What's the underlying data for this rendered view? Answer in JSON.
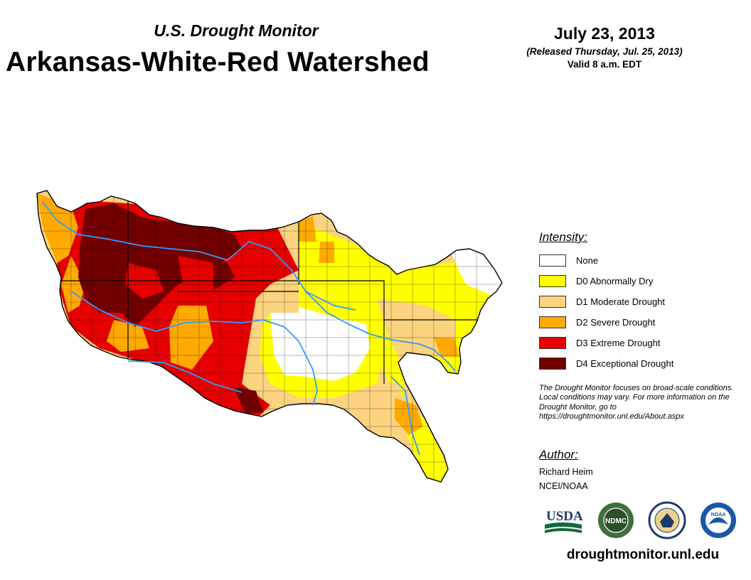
{
  "header": {
    "subtitle": "U.S. Drought Monitor",
    "title": "Arkansas-White-Red Watershed",
    "date": "July 23, 2013",
    "released": "(Released Thursday, Jul. 25, 2013)",
    "valid": "Valid 8 a.m. EDT"
  },
  "legend": {
    "heading": "Intensity:",
    "items": [
      {
        "label": "None",
        "color": "#ffffff"
      },
      {
        "label": "D0 Abnormally Dry",
        "color": "#ffff00"
      },
      {
        "label": "D1 Moderate Drought",
        "color": "#fcd37f"
      },
      {
        "label": "D2 Severe Drought",
        "color": "#ffaa00"
      },
      {
        "label": "D3 Extreme Drought",
        "color": "#e60000"
      },
      {
        "label": "D4 Exceptional Drought",
        "color": "#730000"
      }
    ]
  },
  "note": "The Drought Monitor focuses on broad-scale conditions. Local conditions may vary. For more information on the Drought Monitor, go to https://droughtmonitor.unl.edu/About.aspx",
  "author": {
    "heading": "Author:",
    "name": "Richard Heim",
    "org": "NCEI/NOAA"
  },
  "logos": {
    "usda": "USDA",
    "ndmc": "NDMC",
    "noaa": "NOAA"
  },
  "website": "droughtmonitor.unl.edu",
  "colors": {
    "river": "#3399ff",
    "boundary": "#000000"
  }
}
